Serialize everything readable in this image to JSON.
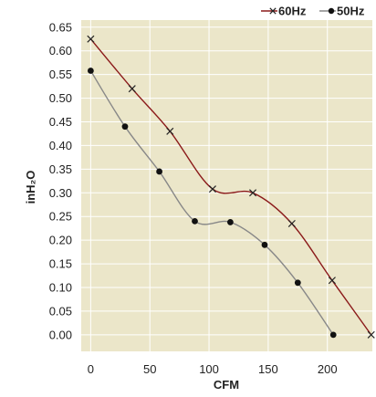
{
  "chart_data": {
    "type": "line",
    "xlabel": "CFM",
    "ylabel": "inH₂O",
    "xlim": [
      -8,
      238
    ],
    "ylim": [
      -0.035,
      0.665
    ],
    "x_ticks": [
      "0",
      "50",
      "100",
      "150",
      "200"
    ],
    "x_tick_values": [
      0,
      50,
      100,
      150,
      200
    ],
    "y_ticks": [
      "0.00",
      "0.05",
      "0.10",
      "0.15",
      "0.20",
      "0.25",
      "0.30",
      "0.35",
      "0.40",
      "0.45",
      "0.50",
      "0.55",
      "0.60",
      "0.65"
    ],
    "y_tick_values": [
      0,
      0.05,
      0.1,
      0.15,
      0.2,
      0.25,
      0.3,
      0.35,
      0.4,
      0.45,
      0.5,
      0.55,
      0.6,
      0.65
    ],
    "grid": true,
    "legend_position": "top-right",
    "background": "#ebe6c9",
    "series": [
      {
        "name": "60Hz",
        "color": "#8b1a1a",
        "marker": "x",
        "points": [
          [
            0,
            0.625
          ],
          [
            35,
            0.52
          ],
          [
            67,
            0.43
          ],
          [
            103,
            0.308
          ],
          [
            137,
            0.3
          ],
          [
            170,
            0.235
          ],
          [
            204,
            0.115
          ],
          [
            237,
            0.0
          ]
        ]
      },
      {
        "name": "50Hz",
        "color": "#888888",
        "marker": "dot",
        "points": [
          [
            0,
            0.558
          ],
          [
            29,
            0.44
          ],
          [
            58,
            0.345
          ],
          [
            88,
            0.24
          ],
          [
            118,
            0.238
          ],
          [
            147,
            0.19
          ],
          [
            175,
            0.11
          ],
          [
            205,
            0.0
          ]
        ]
      }
    ]
  }
}
